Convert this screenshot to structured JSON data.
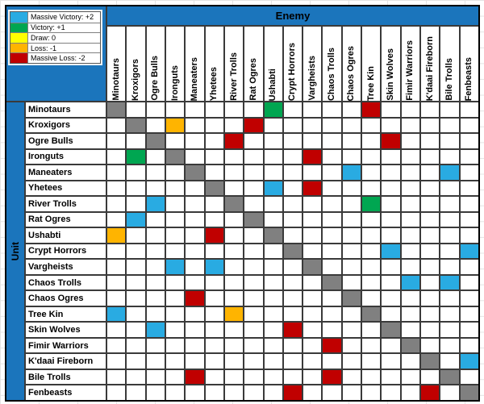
{
  "axes": {
    "enemy_label": "Enemy",
    "unit_label": "Unit"
  },
  "legend": {
    "items": [
      {
        "label": "Massive Victory: +2",
        "value": "+2",
        "color": "#29ABE2"
      },
      {
        "label": "Victory: +1",
        "value": "+1",
        "color": "#00A651"
      },
      {
        "label": "Draw: 0",
        "value": "0",
        "color": "#FFFF00"
      },
      {
        "label": "Loss: -1",
        "value": "-1",
        "color": "#FFB400"
      },
      {
        "label": "Massive Loss: -2",
        "value": "-2",
        "color": "#C00000"
      }
    ]
  },
  "colors": {
    "header_blue": "#1B75BC",
    "outer_border": "#000000",
    "grid_line": "#3A3A3A",
    "sheet_gridline": "#E4E4E4",
    "value_fill": {
      "+2": "#29ABE2",
      "+1": "#00A651",
      "0": "#FFFF00",
      "-1": "#FFB400",
      "-2": "#C00000",
      "self": "#808080",
      "": "#FFFFFF"
    }
  },
  "chart_data": {
    "type": "heatmap",
    "x_axis_label": "Enemy",
    "y_axis_label": "Unit",
    "legend_position": "top-left",
    "value_meanings": {
      "+2": "Massive Victory",
      "+1": "Victory",
      "0": "Draw",
      "-1": "Loss",
      "-2": "Massive Loss",
      "self": "diagonal (unit vs itself, gray)",
      "": "blank (no rating shown)"
    },
    "columns": [
      "Minotaurs",
      "Kroxigors",
      "Ogre Bulls",
      "Ironguts",
      "Maneaters",
      "Yhetees",
      "River Trolls",
      "Rat Ogres",
      "Ushabti",
      "Crypt Horrors",
      "Vargheists",
      "Chaos Trolls",
      "Chaos Ogres",
      "Tree Kin",
      "Skin Wolves",
      "Fimir Warriors",
      "K'daai Fireborn",
      "Bile Trolls",
      "Fenbeasts"
    ],
    "rows": [
      "Minotaurs",
      "Kroxigors",
      "Ogre Bulls",
      "Ironguts",
      "Maneaters",
      "Yhetees",
      "River Trolls",
      "Rat Ogres",
      "Ushabti",
      "Crypt Horrors",
      "Vargheists",
      "Chaos Trolls",
      "Chaos Ogres",
      "Tree Kin",
      "Skin Wolves",
      "Fimir Warriors",
      "K'daai Fireborn",
      "Bile Trolls",
      "Fenbeasts"
    ],
    "matrix": [
      [
        "self",
        "",
        "",
        "",
        "",
        "",
        "",
        "",
        "+1",
        "",
        "",
        "",
        "",
        "-2",
        "",
        "",
        "",
        "",
        ""
      ],
      [
        "",
        "self",
        "",
        "-1",
        "",
        "",
        "",
        "-2",
        "",
        "",
        "",
        "",
        "",
        "",
        "",
        "",
        "",
        "",
        ""
      ],
      [
        "",
        "",
        "self",
        "",
        "",
        "",
        "-2",
        "",
        "",
        "",
        "",
        "",
        "",
        "",
        "-2",
        "",
        "",
        "",
        ""
      ],
      [
        "",
        "+1",
        "",
        "self",
        "",
        "",
        "",
        "",
        "",
        "",
        "-2",
        "",
        "",
        "",
        "",
        "",
        "",
        "",
        ""
      ],
      [
        "",
        "",
        "",
        "",
        "self",
        "",
        "",
        "",
        "",
        "",
        "",
        "",
        "+2",
        "",
        "",
        "",
        "",
        "+2",
        ""
      ],
      [
        "",
        "",
        "",
        "",
        "",
        "self",
        "",
        "",
        "+2",
        "",
        "-2",
        "",
        "",
        "",
        "",
        "",
        "",
        "",
        ""
      ],
      [
        "",
        "",
        "+2",
        "",
        "",
        "",
        "self",
        "",
        "",
        "",
        "",
        "",
        "",
        "+1",
        "",
        "",
        "",
        "",
        ""
      ],
      [
        "",
        "+2",
        "",
        "",
        "",
        "",
        "",
        "self",
        "",
        "",
        "",
        "",
        "",
        "",
        "",
        "",
        "",
        "",
        ""
      ],
      [
        "-1",
        "",
        "",
        "",
        "",
        "-2",
        "",
        "",
        "self",
        "",
        "",
        "",
        "",
        "",
        "",
        "",
        "",
        "",
        ""
      ],
      [
        "",
        "",
        "",
        "",
        "",
        "",
        "",
        "",
        "",
        "self",
        "",
        "",
        "",
        "",
        "+2",
        "",
        "",
        "",
        "+2"
      ],
      [
        "",
        "",
        "",
        "+2",
        "",
        "+2",
        "",
        "",
        "",
        "",
        "self",
        "",
        "",
        "",
        "",
        "",
        "",
        "",
        ""
      ],
      [
        "",
        "",
        "",
        "",
        "",
        "",
        "",
        "",
        "",
        "",
        "",
        "self",
        "",
        "",
        "",
        "+2",
        "",
        "+2",
        ""
      ],
      [
        "",
        "",
        "",
        "",
        "-2",
        "",
        "",
        "",
        "",
        "",
        "",
        "",
        "self",
        "",
        "",
        "",
        "",
        "",
        ""
      ],
      [
        "+2",
        "",
        "",
        "",
        "",
        "",
        "-1",
        "",
        "",
        "",
        "",
        "",
        "",
        "self",
        "",
        "",
        "",
        "",
        ""
      ],
      [
        "",
        "",
        "+2",
        "",
        "",
        "",
        "",
        "",
        "",
        "-2",
        "",
        "",
        "",
        "",
        "self",
        "",
        "",
        "",
        ""
      ],
      [
        "",
        "",
        "",
        "",
        "",
        "",
        "",
        "",
        "",
        "",
        "",
        "-2",
        "",
        "",
        "",
        "self",
        "",
        "",
        ""
      ],
      [
        "",
        "",
        "",
        "",
        "",
        "",
        "",
        "",
        "",
        "",
        "",
        "",
        "",
        "",
        "",
        "",
        "self",
        "",
        "+2"
      ],
      [
        "",
        "",
        "",
        "",
        "-2",
        "",
        "",
        "",
        "",
        "",
        "",
        "-2",
        "",
        "",
        "",
        "",
        "",
        "self",
        ""
      ],
      [
        "",
        "",
        "",
        "",
        "",
        "",
        "",
        "",
        "",
        "-2",
        "",
        "",
        "",
        "",
        "",
        "",
        "-2",
        "",
        "self"
      ]
    ]
  }
}
